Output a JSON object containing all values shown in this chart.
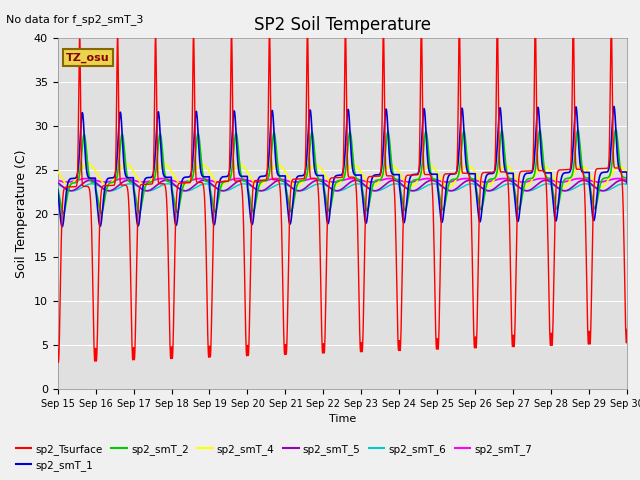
{
  "title": "SP2 Soil Temperature",
  "no_data_label": "No data for f_sp2_smT_3",
  "tz_label": "TZ_osu",
  "ylabel": "Soil Temperature (C)",
  "xlabel": "Time",
  "ylim": [
    0,
    40
  ],
  "yticks": [
    0,
    5,
    10,
    15,
    20,
    25,
    30,
    35,
    40
  ],
  "xtick_labels": [
    "Sep 15",
    "Sep 16",
    "Sep 17",
    "Sep 18",
    "Sep 19",
    "Sep 20",
    "Sep 21",
    "Sep 22",
    "Sep 23",
    "Sep 24",
    "Sep 25",
    "Sep 26",
    "Sep 27",
    "Sep 28",
    "Sep 29",
    "Sep 30"
  ],
  "plot_bg_color": "#e0e0e0",
  "fig_bg_color": "#f0f0f0",
  "series_colors": {
    "sp2_Tsurface": "#ff0000",
    "sp2_smT_1": "#0000dd",
    "sp2_smT_2": "#00cc00",
    "sp2_smT_4": "#ffff00",
    "sp2_smT_5": "#9900bb",
    "sp2_smT_6": "#00cccc",
    "sp2_smT_7": "#ff00ff"
  }
}
